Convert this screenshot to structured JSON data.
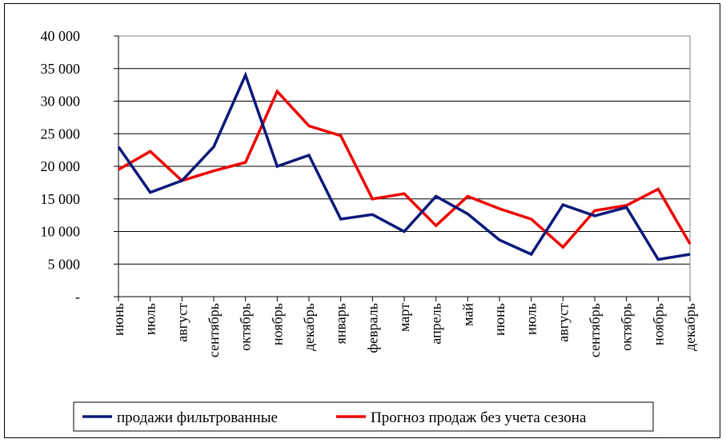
{
  "chart_data": {
    "type": "line",
    "categories": [
      "июнь",
      "июль",
      "август",
      "сентябрь",
      "октябрь",
      "ноябрь",
      "декабрь",
      "январь",
      "февраль",
      "март",
      "апрель",
      "май",
      "июнь",
      "июль",
      "август",
      "сентябрь",
      "октябрь",
      "ноябрь",
      "декабрь"
    ],
    "series": [
      {
        "name": "продажи фильтрованные",
        "color": "#0b1a7a",
        "values": [
          23000,
          16000,
          17800,
          23000,
          34000,
          20000,
          21700,
          11900,
          12600,
          10000,
          15400,
          12700,
          8700,
          6500,
          14100,
          12400,
          13700,
          5700,
          6500
        ]
      },
      {
        "name": "Прогноз продаж без учета сезона",
        "color": "#ee0000",
        "values": [
          19500,
          22300,
          17800,
          19300,
          20600,
          31500,
          26200,
          24700,
          15000,
          15800,
          10900,
          15400,
          13500,
          11900,
          7600,
          13200,
          14000,
          16500,
          8100
        ]
      }
    ],
    "yticks": [
      "-",
      "5 000",
      "10 000",
      "15 000",
      "20 000",
      "25 000",
      "30 000",
      "35 000",
      "40 000"
    ],
    "ylim": [
      0,
      40000
    ],
    "grid": true,
    "legend": "bottom"
  }
}
